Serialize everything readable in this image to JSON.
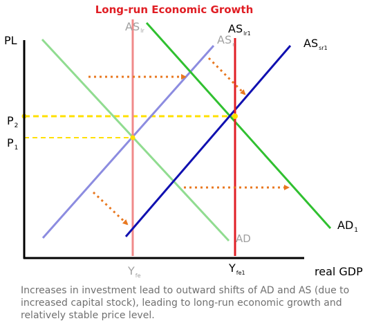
{
  "title": "Long-run Economic  Growth",
  "axes": {
    "y_label": "PL",
    "x_label": "real GDP"
  },
  "price_levels": [
    {
      "label": "P",
      "sub": "2"
    },
    {
      "label": "P",
      "sub": "1"
    }
  ],
  "outputs": [
    {
      "label": "Y",
      "sub": "fe"
    },
    {
      "label": "Y",
      "sub": "fe1"
    }
  ],
  "curves": {
    "as_lr": {
      "label": "AS",
      "sub": "lr",
      "color": "#f08a8a"
    },
    "as_lr1": {
      "label": "AS",
      "sub": "lr1",
      "color": "#e01e24"
    },
    "as_r": {
      "label": "AS",
      "sub": "r",
      "color": "#8c8ce0"
    },
    "as_sr1": {
      "label": "AS",
      "sub": "sr1",
      "color": "#1010b0"
    },
    "ad": {
      "label": "AD",
      "sub": "",
      "color": "#90dc90"
    },
    "ad1": {
      "label": "AD",
      "sub": "1",
      "color": "#30c030"
    }
  },
  "colors": {
    "title": "#e01e24",
    "guides": "#ffe000",
    "arrows": "#e87820",
    "axes": "#000000"
  },
  "caption": "Increases in investment lead to outward shifts of AD and AS (due to increased capital stock), leading to long-run economic growth and relatively stable price level."
}
